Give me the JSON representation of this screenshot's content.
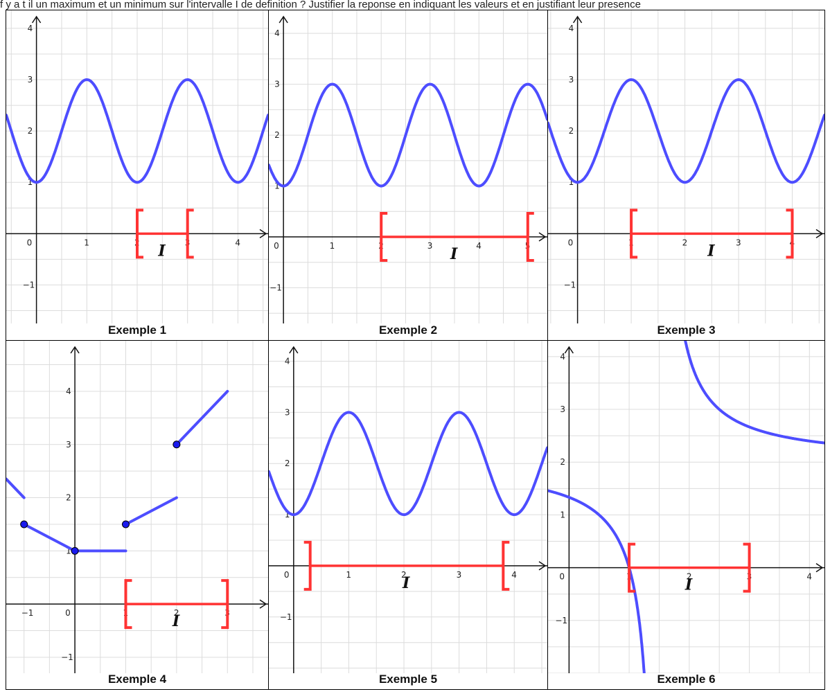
{
  "header_text": "f y a t il un maximum et un minimum sur l'intervalle I de definition ? Justifier la reponse en indiquant les valeurs et en justifiant leur presence",
  "interval_label": "I",
  "colors": {
    "curve": "#4d4dff",
    "interval": "#ff3333",
    "grid": "#dcdcdc"
  },
  "chart_data": [
    {
      "type": "line",
      "caption": "Exemple 1",
      "xlim": [
        -0.6,
        4.6
      ],
      "ylim": [
        -1.75,
        4.35
      ],
      "x_ticks": [
        0,
        1,
        2,
        3,
        4
      ],
      "y_ticks": [
        -1,
        1,
        2,
        3,
        4
      ],
      "series": [
        {
          "function": "2 + sin(pi*(x - 0.5))",
          "x_range": [
            -0.6,
            4.6
          ]
        }
      ],
      "interval": {
        "a": 2,
        "b": 3,
        "left": "[",
        "right": "["
      }
    },
    {
      "type": "line",
      "caption": "Exemple 2",
      "xlim": [
        -0.3,
        5.4
      ],
      "ylim": [
        -1.7,
        4.45
      ],
      "x_ticks": [
        0,
        1,
        2,
        3,
        4,
        5
      ],
      "y_ticks": [
        -1,
        1,
        2,
        3,
        4
      ],
      "series": [
        {
          "function": "2 + sin(pi*(x - 0.5))",
          "x_range": [
            -0.3,
            5.4
          ]
        }
      ],
      "interval": {
        "a": 2,
        "b": 5,
        "left": "[",
        "right": "["
      }
    },
    {
      "type": "line",
      "caption": "Exemple 3",
      "xlim": [
        -0.55,
        4.6
      ],
      "ylim": [
        -1.75,
        4.35
      ],
      "x_ticks": [
        0,
        2,
        3,
        4
      ],
      "y_ticks": [
        -1,
        1,
        2,
        3,
        4
      ],
      "x_ticks_at_interval": [
        1
      ],
      "series": [
        {
          "function": "2 + sin(pi*(x - 0.5))",
          "x_range": [
            -0.55,
            4.6
          ]
        }
      ],
      "interval": {
        "a": 1,
        "b": 4,
        "left": "[",
        "right": "]"
      }
    },
    {
      "type": "line",
      "caption": "Exemple 4",
      "xlim": [
        -1.35,
        3.8
      ],
      "ylim": [
        -1.3,
        4.95
      ],
      "x_ticks": [
        -1,
        0,
        1,
        2,
        3
      ],
      "y_ticks": [
        -1,
        1,
        2,
        3,
        4
      ],
      "pieces": [
        {
          "points": [
            [
              -1.35,
              2.35
            ],
            [
              -1,
              2
            ]
          ],
          "filled_start": false
        },
        {
          "points": [
            [
              -1,
              1.5
            ],
            [
              0,
              1
            ]
          ],
          "filled_start": true
        },
        {
          "points": [
            [
              0,
              1
            ],
            [
              1,
              1
            ]
          ],
          "filled_start": true
        },
        {
          "points": [
            [
              1,
              1.5
            ],
            [
              2,
              2
            ]
          ],
          "filled_start": true
        },
        {
          "points": [
            [
              2,
              3
            ],
            [
              3,
              4
            ]
          ],
          "filled_start": true
        }
      ],
      "interval": {
        "a": 1,
        "b": 3,
        "left": "[",
        "right": "]"
      }
    },
    {
      "type": "line",
      "caption": "Exemple 5",
      "xlim": [
        -0.45,
        4.6
      ],
      "ylim": [
        -2.1,
        4.4
      ],
      "x_ticks": [
        0,
        1,
        2,
        3,
        4
      ],
      "y_ticks": [
        -1,
        1,
        2,
        3,
        4
      ],
      "series": [
        {
          "function": "2 + sin(pi*(x - 0.5))",
          "x_range": [
            -0.45,
            4.6
          ]
        }
      ],
      "interval": {
        "a": 0.3,
        "b": 3.8,
        "left": "]",
        "right": "["
      }
    },
    {
      "type": "line",
      "caption": "Exemple 6",
      "xlim": [
        -0.35,
        4.25
      ],
      "ylim": [
        -2.0,
        4.3
      ],
      "x_ticks": [
        0,
        1,
        2,
        3,
        4
      ],
      "y_ticks": [
        -1,
        1,
        2,
        3,
        4
      ],
      "series": [
        {
          "function": "2 + 1/(x - 1.5)",
          "x_range": [
            -0.35,
            4.25
          ],
          "asymptote": 1.5
        }
      ],
      "interval": {
        "a": 1,
        "b": 3,
        "left": "[",
        "right": "]"
      }
    }
  ]
}
